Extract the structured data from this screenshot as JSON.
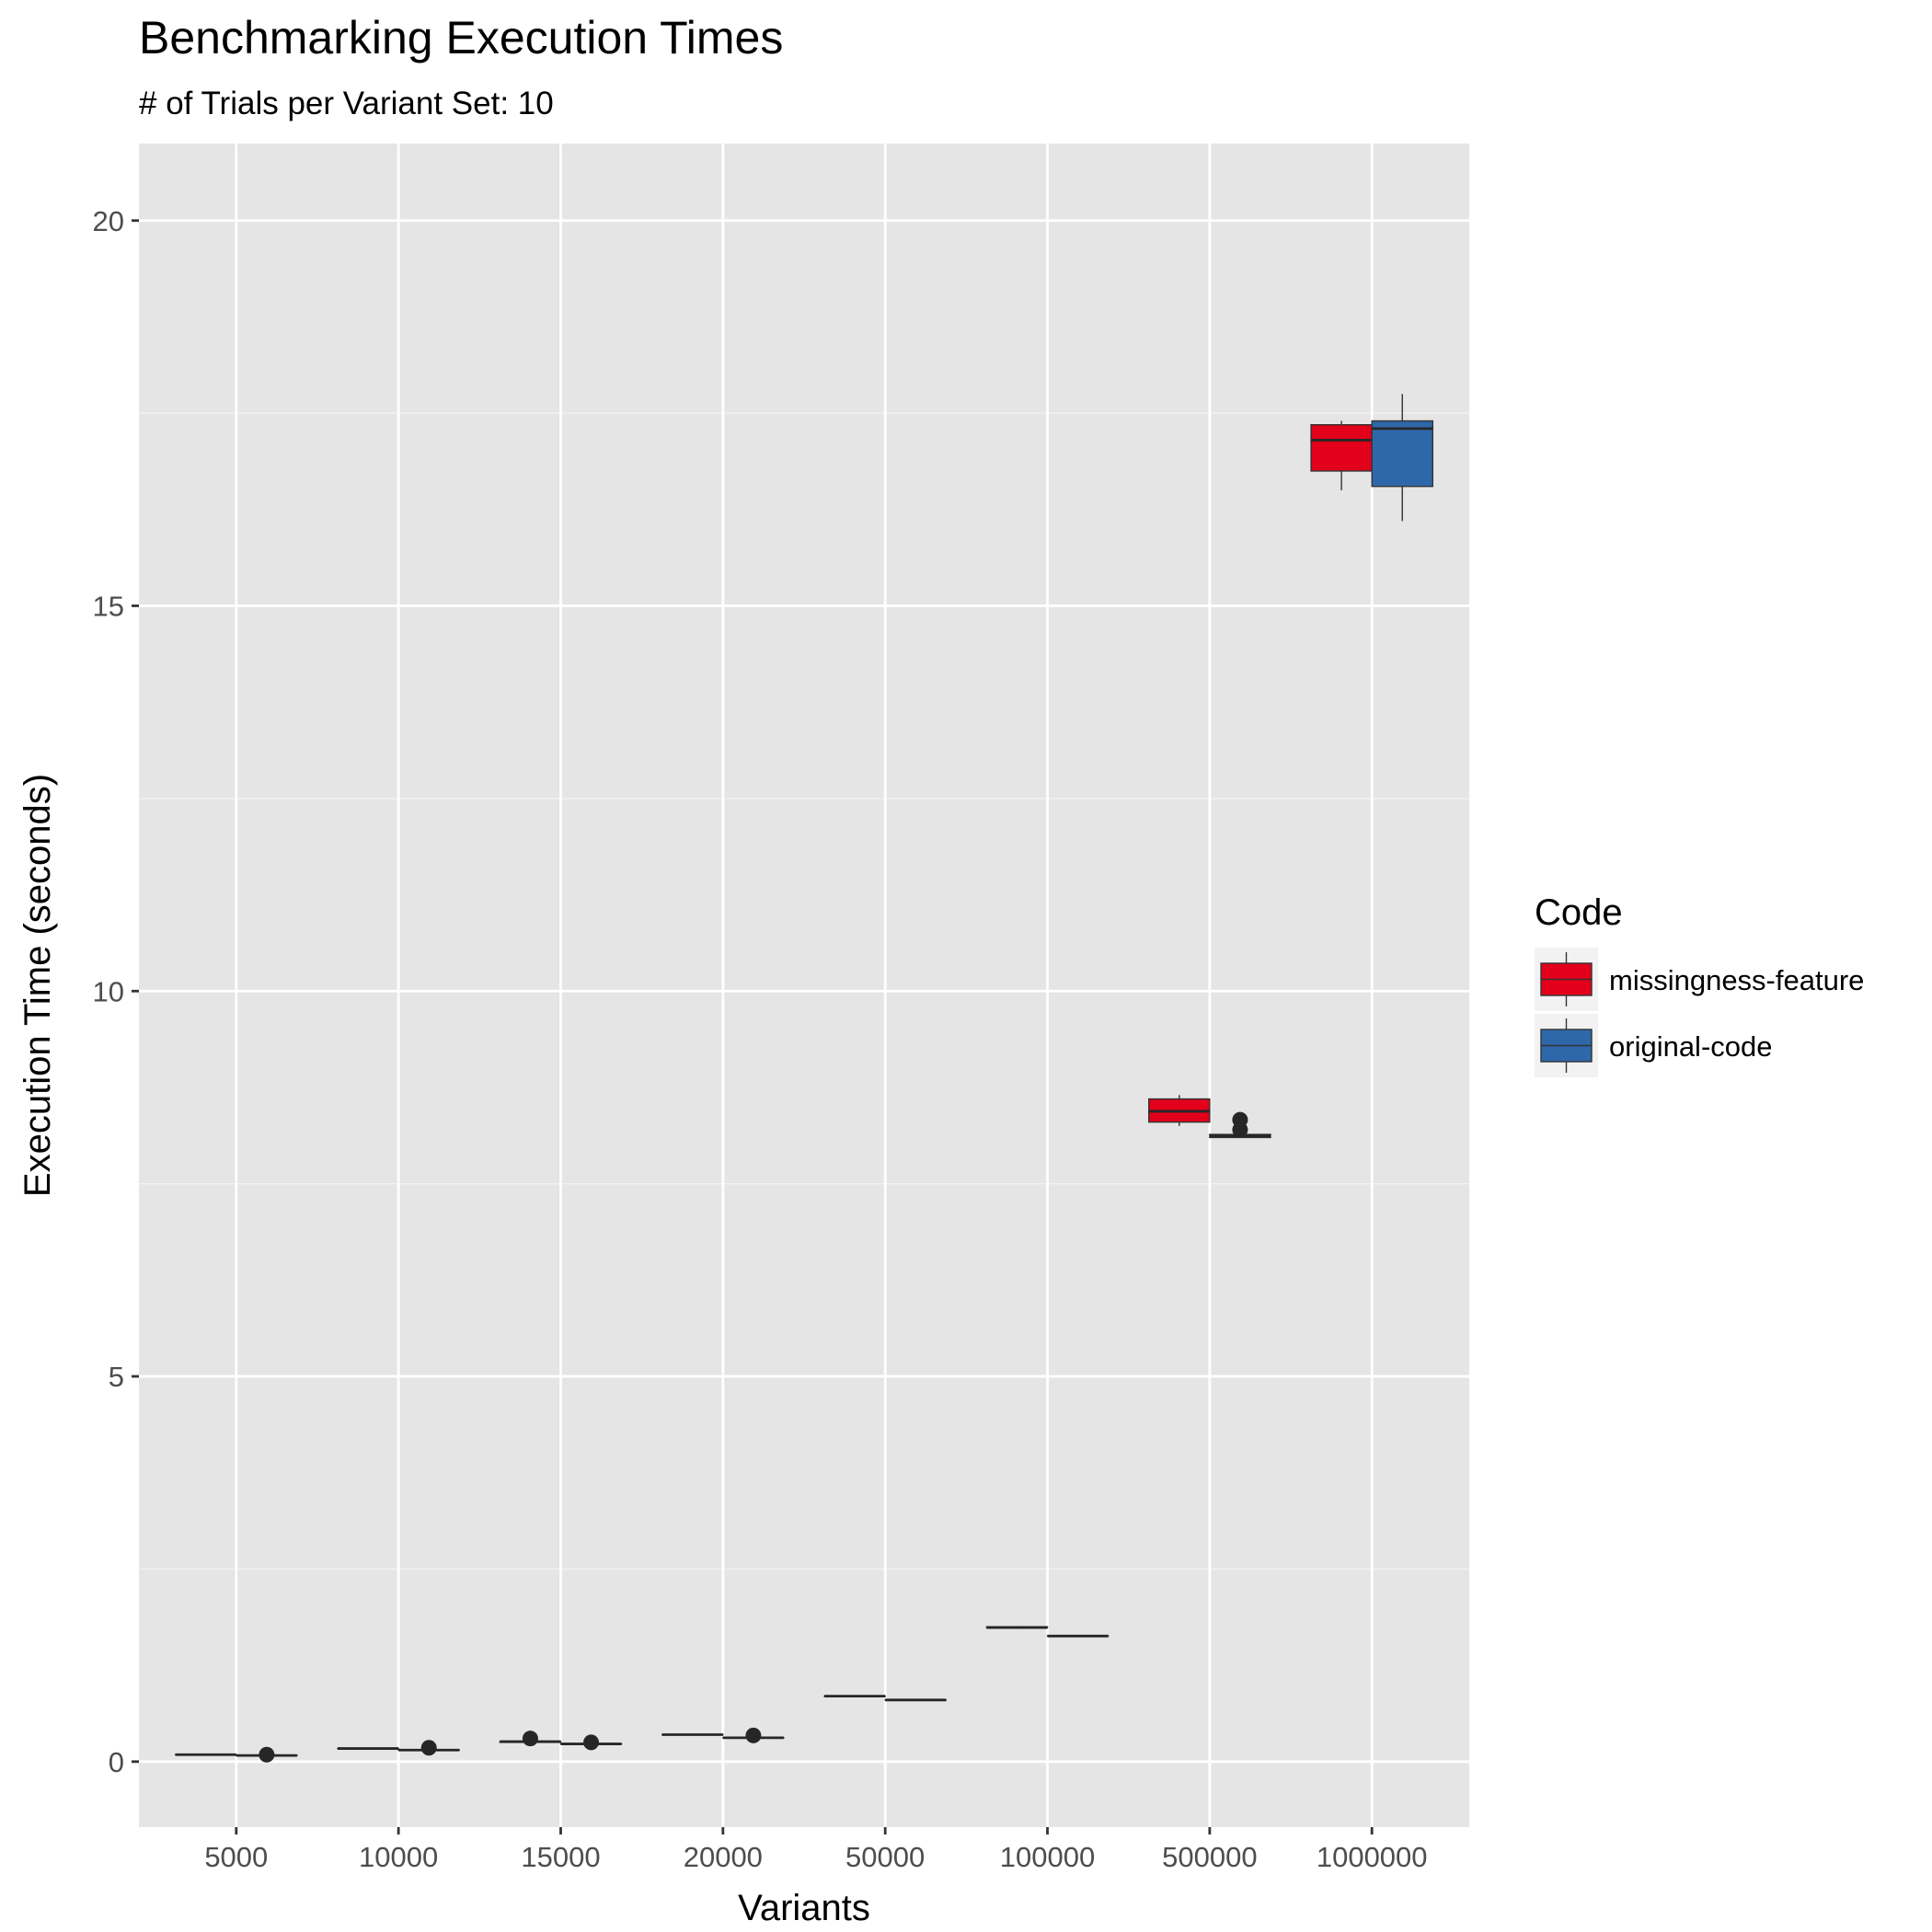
{
  "chart_data": {
    "type": "boxplot",
    "title": "Benchmarking Execution Times",
    "subtitle": "# of Trials per Variant Set: 10",
    "xlabel": "Variants",
    "ylabel": "Execution Time (seconds)",
    "ylim": [
      -0.85,
      21.0
    ],
    "yticks": [
      0,
      5,
      10,
      15,
      20
    ],
    "categories": [
      "5000",
      "10000",
      "15000",
      "20000",
      "50000",
      "100000",
      "500000",
      "1000000"
    ],
    "legend": {
      "title": "Code",
      "position": "right"
    },
    "grid": true,
    "series": [
      {
        "name": "missingness-feature",
        "color": "#E3001B",
        "boxes": [
          {
            "q1": 0.09,
            "median": 0.09,
            "q3": 0.09,
            "min": 0.09,
            "max": 0.09,
            "outliers": []
          },
          {
            "q1": 0.17,
            "median": 0.17,
            "q3": 0.17,
            "min": 0.17,
            "max": 0.17,
            "outliers": []
          },
          {
            "q1": 0.25,
            "median": 0.26,
            "q3": 0.26,
            "min": 0.25,
            "max": 0.26,
            "outliers": [
              0.3
            ]
          },
          {
            "q1": 0.35,
            "median": 0.35,
            "q3": 0.35,
            "min": 0.35,
            "max": 0.35,
            "outliers": []
          },
          {
            "q1": 0.85,
            "median": 0.85,
            "q3": 0.85,
            "min": 0.85,
            "max": 0.85,
            "outliers": []
          },
          {
            "q1": 1.74,
            "median": 1.74,
            "q3": 1.75,
            "min": 1.73,
            "max": 1.76,
            "outliers": []
          },
          {
            "q1": 8.3,
            "median": 8.44,
            "q3": 8.6,
            "min": 8.25,
            "max": 8.65,
            "outliers": []
          },
          {
            "q1": 16.75,
            "median": 17.15,
            "q3": 17.35,
            "min": 16.5,
            "max": 17.4,
            "outliers": []
          }
        ]
      },
      {
        "name": "original-code",
        "color": "#2E68AA",
        "boxes": [
          {
            "q1": 0.08,
            "median": 0.08,
            "q3": 0.08,
            "min": 0.08,
            "max": 0.08,
            "outliers": [
              0.09
            ]
          },
          {
            "q1": 0.15,
            "median": 0.15,
            "q3": 0.15,
            "min": 0.15,
            "max": 0.15,
            "outliers": [
              0.18
            ]
          },
          {
            "q1": 0.23,
            "median": 0.23,
            "q3": 0.23,
            "min": 0.23,
            "max": 0.23,
            "outliers": [
              0.25
            ]
          },
          {
            "q1": 0.31,
            "median": 0.31,
            "q3": 0.31,
            "min": 0.31,
            "max": 0.31,
            "outliers": [
              0.34
            ]
          },
          {
            "q1": 0.8,
            "median": 0.8,
            "q3": 0.8,
            "min": 0.8,
            "max": 0.8,
            "outliers": []
          },
          {
            "q1": 1.63,
            "median": 1.63,
            "q3": 1.63,
            "min": 1.63,
            "max": 1.63,
            "outliers": []
          },
          {
            "q1": 8.1,
            "median": 8.12,
            "q3": 8.14,
            "min": 8.1,
            "max": 8.15,
            "outliers": [
              8.2,
              8.33
            ]
          },
          {
            "q1": 16.55,
            "median": 17.3,
            "q3": 17.4,
            "min": 16.1,
            "max": 17.75,
            "outliers": []
          }
        ]
      }
    ]
  }
}
